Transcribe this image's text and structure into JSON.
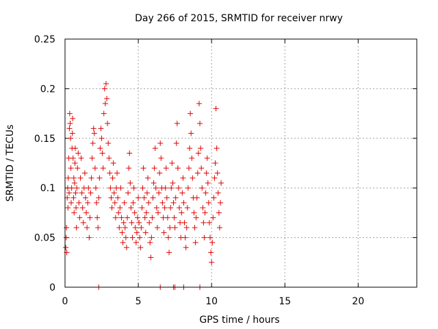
{
  "chart_data": {
    "type": "scatter",
    "title": "Day 266 of 2015, SRMTID for receiver nrwy",
    "xlabel": "GPS time / hours",
    "ylabel": "SRMTID / TECUs",
    "xlim": [
      0,
      24
    ],
    "ylim": [
      0,
      0.25
    ],
    "xticks": [
      0,
      5,
      10,
      15,
      20
    ],
    "xtick_labels": [
      "0",
      "5",
      "10",
      "15",
      "20"
    ],
    "yticks": [
      0,
      0.05,
      0.1,
      0.15,
      0.2,
      0.25
    ],
    "ytick_labels": [
      "0",
      "0.05",
      "0.1",
      "0.15",
      "0.2",
      "0.25"
    ],
    "grid": true,
    "marker": "+",
    "color": "#e00000",
    "series": [
      {
        "name": "SRMTID",
        "points": [
          [
            0.05,
            0.04
          ],
          [
            0.08,
            0.05
          ],
          [
            0.1,
            0.06
          ],
          [
            0.12,
            0.035
          ],
          [
            0.15,
            0.09
          ],
          [
            0.18,
            0.1
          ],
          [
            0.2,
            0.08
          ],
          [
            0.22,
            0.11
          ],
          [
            0.25,
            0.13
          ],
          [
            0.28,
            0.095
          ],
          [
            0.3,
            0.16
          ],
          [
            0.32,
            0.175
          ],
          [
            0.35,
            0.165
          ],
          [
            0.38,
            0.15
          ],
          [
            0.4,
            0.12
          ],
          [
            0.42,
            0.085
          ],
          [
            0.45,
            0.1
          ],
          [
            0.48,
            0.14
          ],
          [
            0.5,
            0.155
          ],
          [
            0.52,
            0.17
          ],
          [
            0.55,
            0.13
          ],
          [
            0.58,
            0.09
          ],
          [
            0.6,
            0.11
          ],
          [
            0.62,
            0.075
          ],
          [
            0.65,
            0.105
          ],
          [
            0.68,
            0.125
          ],
          [
            0.7,
            0.14
          ],
          [
            0.72,
            0.095
          ],
          [
            0.75,
            0.08
          ],
          [
            0.78,
            0.06
          ],
          [
            0.8,
            0.1
          ],
          [
            0.85,
            0.12
          ],
          [
            0.9,
            0.135
          ],
          [
            0.95,
            0.085
          ],
          [
            1.0,
            0.07
          ],
          [
            1.05,
            0.11
          ],
          [
            1.1,
            0.13
          ],
          [
            1.15,
            0.095
          ],
          [
            1.2,
            0.08
          ],
          [
            1.25,
            0.065
          ],
          [
            1.3,
            0.1
          ],
          [
            1.35,
            0.115
          ],
          [
            1.4,
            0.09
          ],
          [
            1.45,
            0.075
          ],
          [
            1.5,
            0.06
          ],
          [
            1.55,
            0.085
          ],
          [
            1.6,
            0.1
          ],
          [
            1.65,
            0.05
          ],
          [
            1.7,
            0.07
          ],
          [
            1.75,
            0.095
          ],
          [
            1.8,
            0.11
          ],
          [
            1.85,
            0.13
          ],
          [
            1.9,
            0.145
          ],
          [
            1.95,
            0.16
          ],
          [
            2.0,
            0.155
          ],
          [
            2.05,
            0.12
          ],
          [
            2.1,
            0.1
          ],
          [
            2.15,
            0.085
          ],
          [
            2.2,
            0.07
          ],
          [
            2.25,
            0.06
          ],
          [
            2.3,
            0.09
          ],
          [
            2.35,
            0.11
          ],
          [
            2.4,
            0.14
          ],
          [
            2.45,
            0.16
          ],
          [
            2.5,
            0.15
          ],
          [
            2.55,
            0.135
          ],
          [
            2.6,
            0.12
          ],
          [
            2.65,
            0.175
          ],
          [
            2.7,
            0.2
          ],
          [
            2.75,
            0.185
          ],
          [
            2.8,
            0.205
          ],
          [
            2.85,
            0.19
          ],
          [
            2.9,
            0.165
          ],
          [
            2.95,
            0.145
          ],
          [
            3.0,
            0.13
          ],
          [
            3.05,
            0.115
          ],
          [
            3.1,
            0.1
          ],
          [
            3.15,
            0.09
          ],
          [
            3.2,
            0.08
          ],
          [
            3.25,
            0.11
          ],
          [
            3.3,
            0.125
          ],
          [
            3.35,
            0.095
          ],
          [
            3.4,
            0.085
          ],
          [
            3.45,
            0.07
          ],
          [
            3.5,
            0.1
          ],
          [
            3.55,
            0.115
          ],
          [
            3.6,
            0.09
          ],
          [
            3.65,
            0.075
          ],
          [
            3.7,
            0.06
          ],
          [
            3.75,
            0.08
          ],
          [
            3.8,
            0.1
          ],
          [
            3.85,
            0.07
          ],
          [
            3.9,
            0.055
          ],
          [
            3.95,
            0.045
          ],
          [
            4.0,
            0.065
          ],
          [
            4.05,
            0.085
          ],
          [
            4.1,
            0.06
          ],
          [
            4.15,
            0.05
          ],
          [
            4.2,
            0.04
          ],
          [
            4.25,
            0.07
          ],
          [
            4.3,
            0.095
          ],
          [
            4.35,
            0.12
          ],
          [
            4.4,
            0.135
          ],
          [
            4.45,
            0.105
          ],
          [
            4.5,
            0.08
          ],
          [
            4.55,
            0.065
          ],
          [
            4.6,
            0.05
          ],
          [
            4.65,
            0.085
          ],
          [
            4.7,
            0.1
          ],
          [
            4.75,
            0.075
          ],
          [
            4.8,
            0.06
          ],
          [
            4.85,
            0.045
          ],
          [
            4.9,
            0.055
          ],
          [
            4.95,
            0.07
          ],
          [
            5.0,
            0.09
          ],
          [
            5.05,
            0.065
          ],
          [
            5.1,
            0.05
          ],
          [
            5.15,
            0.04
          ],
          [
            5.2,
            0.06
          ],
          [
            5.25,
            0.08
          ],
          [
            5.3,
            0.1
          ],
          [
            5.35,
            0.12
          ],
          [
            5.4,
            0.09
          ],
          [
            5.45,
            0.07
          ],
          [
            5.5,
            0.055
          ],
          [
            5.55,
            0.075
          ],
          [
            5.6,
            0.095
          ],
          [
            5.65,
            0.11
          ],
          [
            5.7,
            0.085
          ],
          [
            5.75,
            0.065
          ],
          [
            5.8,
            0.045
          ],
          [
            5.85,
            0.03
          ],
          [
            5.9,
            0.05
          ],
          [
            5.95,
            0.07
          ],
          [
            6.0,
            0.09
          ],
          [
            6.05,
            0.105
          ],
          [
            6.1,
            0.12
          ],
          [
            6.15,
            0.14
          ],
          [
            6.2,
            0.1
          ],
          [
            6.25,
            0.08
          ],
          [
            6.3,
            0.06
          ],
          [
            6.35,
            0.075
          ],
          [
            6.4,
            0.095
          ],
          [
            6.45,
            0.115
          ],
          [
            6.5,
            0.145
          ],
          [
            6.55,
            0.13
          ],
          [
            6.6,
            0.1
          ],
          [
            6.65,
            0.085
          ],
          [
            6.7,
            0.07
          ],
          [
            6.75,
            0.055
          ],
          [
            6.8,
            0.08
          ],
          [
            6.85,
            0.1
          ],
          [
            6.9,
            0.12
          ],
          [
            6.95,
            0.09
          ],
          [
            7.0,
            0.07
          ],
          [
            7.05,
            0.05
          ],
          [
            7.1,
            0.035
          ],
          [
            7.15,
            0.06
          ],
          [
            7.2,
            0.08
          ],
          [
            7.25,
            0.1
          ],
          [
            7.3,
            0.125
          ],
          [
            7.35,
            0.105
          ],
          [
            7.4,
            0.085
          ],
          [
            7.45,
            0.07
          ],
          [
            7.5,
            0.06
          ],
          [
            7.55,
            0.09
          ],
          [
            7.6,
            0.145
          ],
          [
            7.65,
            0.165
          ],
          [
            7.7,
            0.12
          ],
          [
            7.75,
            0.1
          ],
          [
            7.8,
            0.08
          ],
          [
            7.85,
            0.065
          ],
          [
            7.9,
            0.05
          ],
          [
            7.95,
            0.075
          ],
          [
            8.0,
            0.095
          ],
          [
            8.05,
            0.11
          ],
          [
            8.1,
            0.085
          ],
          [
            8.15,
            0.065
          ],
          [
            8.2,
            0.05
          ],
          [
            8.25,
            0.04
          ],
          [
            8.3,
            0.06
          ],
          [
            8.35,
            0.08
          ],
          [
            8.4,
            0.1
          ],
          [
            8.45,
            0.12
          ],
          [
            8.5,
            0.14
          ],
          [
            8.55,
            0.175
          ],
          [
            8.6,
            0.155
          ],
          [
            8.65,
            0.13
          ],
          [
            8.7,
            0.11
          ],
          [
            8.75,
            0.09
          ],
          [
            8.8,
            0.075
          ],
          [
            8.85,
            0.06
          ],
          [
            8.9,
            0.045
          ],
          [
            8.95,
            0.07
          ],
          [
            9.0,
            0.09
          ],
          [
            9.05,
            0.115
          ],
          [
            9.1,
            0.135
          ],
          [
            9.15,
            0.185
          ],
          [
            9.2,
            0.165
          ],
          [
            9.25,
            0.14
          ],
          [
            9.3,
            0.12
          ],
          [
            9.35,
            0.1
          ],
          [
            9.4,
            0.08
          ],
          [
            9.45,
            0.065
          ],
          [
            9.5,
            0.05
          ],
          [
            9.55,
            0.075
          ],
          [
            9.6,
            0.095
          ],
          [
            9.65,
            0.115
          ],
          [
            9.7,
            0.13
          ],
          [
            9.75,
            0.105
          ],
          [
            9.8,
            0.085
          ],
          [
            9.85,
            0.065
          ],
          [
            9.9,
            0.05
          ],
          [
            9.95,
            0.035
          ],
          [
            10.0,
            0.025
          ],
          [
            10.05,
            0.045
          ],
          [
            10.1,
            0.07
          ],
          [
            10.15,
            0.09
          ],
          [
            10.2,
            0.11
          ],
          [
            10.25,
            0.125
          ],
          [
            10.3,
            0.18
          ],
          [
            10.35,
            0.14
          ],
          [
            10.4,
            0.115
          ],
          [
            10.45,
            0.095
          ],
          [
            10.5,
            0.075
          ],
          [
            10.55,
            0.06
          ],
          [
            10.6,
            0.085
          ],
          [
            10.65,
            0.105
          ]
        ]
      }
    ],
    "zero_markers_x": [
      2.3,
      6.5,
      7.4,
      7.5,
      8.1,
      9.2
    ]
  }
}
